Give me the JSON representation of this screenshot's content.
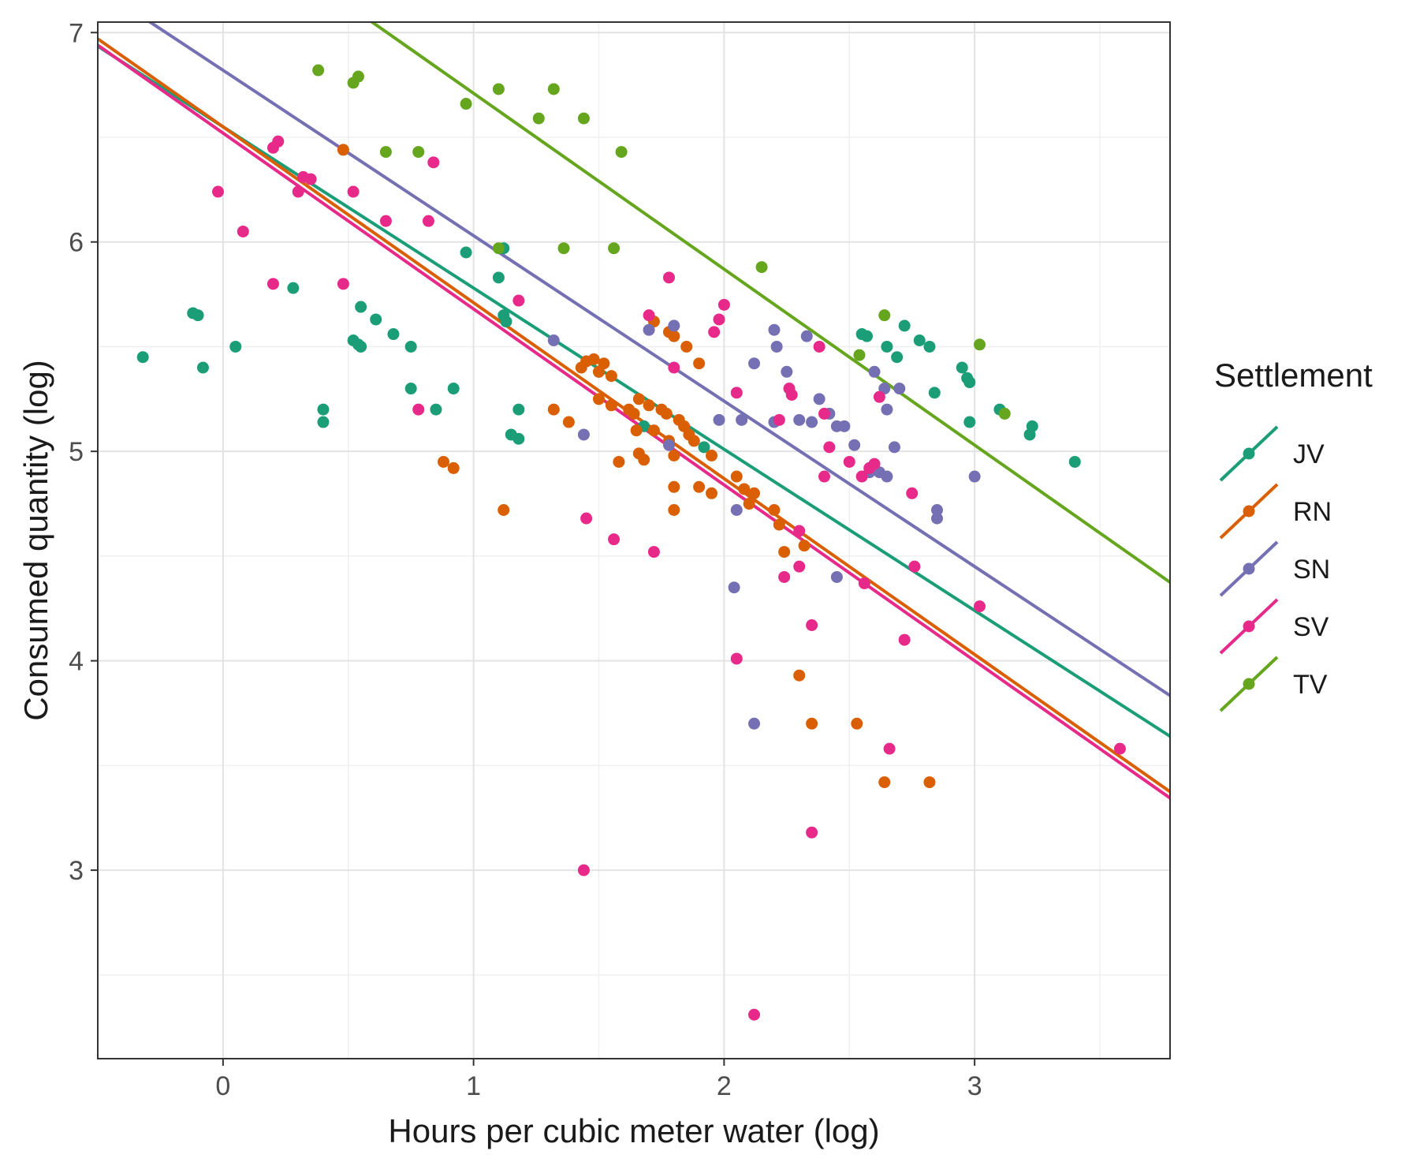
{
  "chart_data": {
    "type": "scatter",
    "title": "",
    "xlabel": "Hours per cubic meter water (log)",
    "ylabel": "Consumed quantity (log)",
    "xlim": [
      -0.5,
      3.78
    ],
    "ylim": [
      2.1,
      7.05
    ],
    "x_ticks": [
      0,
      1,
      2,
      3
    ],
    "y_ticks": [
      3,
      4,
      5,
      6,
      7
    ],
    "grid": true,
    "legend": {
      "title": "Settlement",
      "position": "right"
    },
    "series": [
      {
        "name": "JV",
        "color": "#1b9e77",
        "fit_line": {
          "intercept": 6.55,
          "slope": -0.77
        },
        "points": [
          [
            -0.32,
            5.45
          ],
          [
            -0.12,
            5.66
          ],
          [
            -0.1,
            5.65
          ],
          [
            -0.08,
            5.4
          ],
          [
            0.05,
            5.5
          ],
          [
            0.28,
            5.78
          ],
          [
            0.4,
            5.2
          ],
          [
            0.4,
            5.14
          ],
          [
            0.52,
            5.53
          ],
          [
            0.54,
            5.51
          ],
          [
            0.55,
            5.5
          ],
          [
            0.55,
            5.69
          ],
          [
            0.61,
            5.63
          ],
          [
            0.68,
            5.56
          ],
          [
            0.75,
            5.5
          ],
          [
            0.75,
            5.3
          ],
          [
            0.85,
            5.2
          ],
          [
            0.92,
            5.3
          ],
          [
            0.97,
            5.95
          ],
          [
            1.1,
            5.83
          ],
          [
            1.12,
            5.97
          ],
          [
            1.12,
            5.65
          ],
          [
            1.13,
            5.62
          ],
          [
            1.15,
            5.08
          ],
          [
            1.18,
            5.06
          ],
          [
            1.18,
            5.2
          ],
          [
            1.5,
            5.38
          ],
          [
            1.68,
            5.12
          ],
          [
            1.92,
            5.02
          ],
          [
            2.55,
            5.56
          ],
          [
            2.57,
            5.55
          ],
          [
            2.65,
            5.5
          ],
          [
            2.69,
            5.45
          ],
          [
            2.72,
            5.6
          ],
          [
            2.78,
            5.53
          ],
          [
            2.82,
            5.5
          ],
          [
            2.84,
            5.28
          ],
          [
            2.95,
            5.4
          ],
          [
            2.97,
            5.35
          ],
          [
            2.98,
            5.33
          ],
          [
            2.98,
            5.14
          ],
          [
            3.1,
            5.2
          ],
          [
            3.22,
            5.08
          ],
          [
            3.23,
            5.12
          ],
          [
            3.4,
            4.95
          ]
        ]
      },
      {
        "name": "RN",
        "color": "#d95f02",
        "fit_line": {
          "intercept": 6.55,
          "slope": -0.84
        },
        "points": [
          [
            0.48,
            6.44
          ],
          [
            0.88,
            4.95
          ],
          [
            0.92,
            4.92
          ],
          [
            1.12,
            4.72
          ],
          [
            1.32,
            5.2
          ],
          [
            1.38,
            5.14
          ],
          [
            1.43,
            5.4
          ],
          [
            1.45,
            5.43
          ],
          [
            1.48,
            5.44
          ],
          [
            1.5,
            5.38
          ],
          [
            1.52,
            5.42
          ],
          [
            1.55,
            5.36
          ],
          [
            1.5,
            5.25
          ],
          [
            1.55,
            5.22
          ],
          [
            1.58,
            4.95
          ],
          [
            1.62,
            5.2
          ],
          [
            1.64,
            5.18
          ],
          [
            1.66,
            5.25
          ],
          [
            1.65,
            5.1
          ],
          [
            1.66,
            4.99
          ],
          [
            1.68,
            4.96
          ],
          [
            1.7,
            5.22
          ],
          [
            1.72,
            5.1
          ],
          [
            1.72,
            5.62
          ],
          [
            1.75,
            5.2
          ],
          [
            1.77,
            5.18
          ],
          [
            1.78,
            5.57
          ],
          [
            1.8,
            5.55
          ],
          [
            1.78,
            5.05
          ],
          [
            1.8,
            4.98
          ],
          [
            1.82,
            5.15
          ],
          [
            1.84,
            5.12
          ],
          [
            1.85,
            5.5
          ],
          [
            1.86,
            5.08
          ],
          [
            1.88,
            5.05
          ],
          [
            1.9,
            5.42
          ],
          [
            1.8,
            4.83
          ],
          [
            1.8,
            4.72
          ],
          [
            1.9,
            4.83
          ],
          [
            1.95,
            4.8
          ],
          [
            1.95,
            4.98
          ],
          [
            2.05,
            4.88
          ],
          [
            2.08,
            4.82
          ],
          [
            2.12,
            4.8
          ],
          [
            2.1,
            4.75
          ],
          [
            2.2,
            4.72
          ],
          [
            2.22,
            4.65
          ],
          [
            2.24,
            4.52
          ],
          [
            2.32,
            4.55
          ],
          [
            2.3,
            3.93
          ],
          [
            2.35,
            3.7
          ],
          [
            2.53,
            3.7
          ],
          [
            2.64,
            3.42
          ],
          [
            2.82,
            3.42
          ]
        ]
      },
      {
        "name": "SN",
        "color": "#7570b3",
        "fit_line": {
          "intercept": 6.82,
          "slope": -0.79
        },
        "points": [
          [
            1.32,
            5.53
          ],
          [
            1.44,
            5.08
          ],
          [
            1.7,
            5.58
          ],
          [
            1.8,
            5.6
          ],
          [
            1.78,
            5.03
          ],
          [
            1.98,
            5.15
          ],
          [
            2.04,
            4.35
          ],
          [
            2.05,
            4.72
          ],
          [
            2.07,
            5.15
          ],
          [
            2.12,
            3.7
          ],
          [
            2.12,
            5.42
          ],
          [
            2.2,
            5.14
          ],
          [
            2.2,
            5.58
          ],
          [
            2.21,
            5.5
          ],
          [
            2.25,
            5.38
          ],
          [
            2.3,
            5.15
          ],
          [
            2.33,
            5.55
          ],
          [
            2.35,
            5.14
          ],
          [
            2.38,
            5.25
          ],
          [
            2.42,
            5.18
          ],
          [
            2.45,
            4.4
          ],
          [
            2.45,
            5.12
          ],
          [
            2.48,
            5.12
          ],
          [
            2.52,
            5.03
          ],
          [
            2.58,
            4.9
          ],
          [
            2.6,
            5.38
          ],
          [
            2.62,
            4.9
          ],
          [
            2.64,
            5.3
          ],
          [
            2.65,
            5.2
          ],
          [
            2.65,
            4.88
          ],
          [
            2.68,
            5.02
          ],
          [
            2.7,
            5.3
          ],
          [
            2.85,
            4.72
          ],
          [
            2.85,
            4.68
          ],
          [
            3.0,
            4.88
          ]
        ]
      },
      {
        "name": "SV",
        "color": "#e7298a",
        "fit_line": {
          "intercept": 6.52,
          "slope": -0.84
        },
        "points": [
          [
            -0.02,
            6.24
          ],
          [
            0.08,
            6.05
          ],
          [
            0.2,
            6.45
          ],
          [
            0.22,
            6.48
          ],
          [
            0.2,
            5.8
          ],
          [
            0.3,
            6.24
          ],
          [
            0.32,
            6.31
          ],
          [
            0.35,
            6.3
          ],
          [
            0.48,
            5.8
          ],
          [
            0.52,
            6.24
          ],
          [
            0.65,
            6.1
          ],
          [
            0.78,
            5.2
          ],
          [
            0.82,
            6.1
          ],
          [
            0.84,
            6.38
          ],
          [
            1.18,
            5.72
          ],
          [
            1.44,
            3.0
          ],
          [
            1.45,
            4.68
          ],
          [
            1.56,
            4.58
          ],
          [
            1.7,
            5.65
          ],
          [
            1.72,
            4.52
          ],
          [
            1.78,
            5.83
          ],
          [
            1.8,
            5.4
          ],
          [
            1.96,
            5.57
          ],
          [
            1.98,
            5.63
          ],
          [
            2.0,
            5.7
          ],
          [
            2.05,
            5.28
          ],
          [
            2.05,
            4.01
          ],
          [
            2.12,
            2.31
          ],
          [
            2.22,
            5.15
          ],
          [
            2.24,
            4.4
          ],
          [
            2.26,
            5.3
          ],
          [
            2.27,
            5.27
          ],
          [
            2.3,
            4.62
          ],
          [
            2.3,
            4.45
          ],
          [
            2.35,
            4.17
          ],
          [
            2.35,
            3.18
          ],
          [
            2.38,
            5.5
          ],
          [
            2.4,
            4.88
          ],
          [
            2.4,
            5.18
          ],
          [
            2.42,
            5.02
          ],
          [
            2.5,
            4.95
          ],
          [
            2.55,
            4.88
          ],
          [
            2.56,
            4.37
          ],
          [
            2.58,
            4.92
          ],
          [
            2.6,
            4.94
          ],
          [
            2.62,
            5.26
          ],
          [
            2.66,
            3.58
          ],
          [
            2.72,
            4.1
          ],
          [
            2.75,
            4.8
          ],
          [
            2.76,
            4.45
          ],
          [
            3.02,
            4.26
          ],
          [
            3.58,
            3.58
          ]
        ]
      },
      {
        "name": "TV",
        "color": "#66a61e",
        "fit_line": {
          "intercept": 7.55,
          "slope": -0.84
        },
        "points": [
          [
            0.38,
            6.82
          ],
          [
            0.52,
            6.76
          ],
          [
            0.54,
            6.79
          ],
          [
            0.65,
            6.43
          ],
          [
            0.78,
            6.43
          ],
          [
            0.97,
            6.66
          ],
          [
            1.1,
            6.73
          ],
          [
            1.1,
            5.97
          ],
          [
            1.26,
            6.59
          ],
          [
            1.32,
            6.73
          ],
          [
            1.36,
            5.97
          ],
          [
            1.44,
            6.59
          ],
          [
            1.56,
            5.97
          ],
          [
            1.59,
            6.43
          ],
          [
            2.15,
            5.88
          ],
          [
            2.54,
            5.46
          ],
          [
            2.64,
            5.65
          ],
          [
            3.02,
            5.51
          ],
          [
            3.12,
            5.18
          ]
        ]
      }
    ]
  }
}
